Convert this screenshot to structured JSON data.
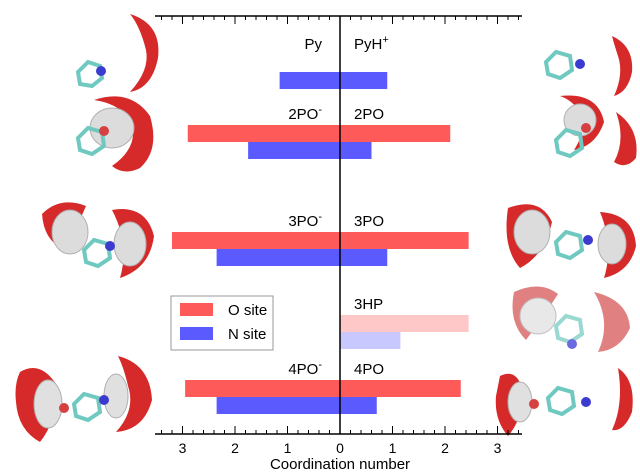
{
  "chart_data": {
    "type": "bar",
    "orientation": "diverging-horizontal",
    "xlabel": "Coordination number",
    "xlim": [
      -3.5,
      3.5
    ],
    "ticks": [
      {
        "value": -3,
        "label": "3"
      },
      {
        "value": -2,
        "label": "2"
      },
      {
        "value": -1,
        "label": "1"
      },
      {
        "value": 0,
        "label": "0"
      },
      {
        "value": 1,
        "label": "1"
      },
      {
        "value": 2,
        "label": "2"
      },
      {
        "value": 3,
        "label": "3"
      }
    ],
    "legend": {
      "position": "lower-left",
      "entries": [
        {
          "label": "O site",
          "color": "#ff5a5a"
        },
        {
          "label": "N site",
          "color": "#5a5aff"
        }
      ]
    },
    "colors": {
      "O": "#ff5a5a",
      "N": "#5a5aff",
      "O_faded": "#ffc8c8",
      "N_faded": "#c8c8ff"
    },
    "groups": [
      {
        "left_label": "Py",
        "left_sup": "",
        "right_label": "PyH",
        "right_sup": "+",
        "left": {
          "O": null,
          "N": 1.15
        },
        "right": {
          "O": null,
          "N": 0.9
        },
        "faded": false
      },
      {
        "left_label": "2PO",
        "left_sup": "-",
        "right_label": "2PO",
        "right_sup": "",
        "left": {
          "O": 2.9,
          "N": 1.75
        },
        "right": {
          "O": 2.1,
          "N": 0.6
        },
        "faded": false
      },
      {
        "left_label": "3PO",
        "left_sup": "-",
        "right_label": "3PO",
        "right_sup": "",
        "left": {
          "O": 3.2,
          "N": 2.35
        },
        "right": {
          "O": 2.45,
          "N": 0.9
        },
        "faded": false
      },
      {
        "left_label": "",
        "left_sup": "",
        "right_label": "3HP",
        "right_sup": "",
        "left": {
          "O": null,
          "N": null
        },
        "right": {
          "O": 2.45,
          "N": 1.15
        },
        "faded": true
      },
      {
        "left_label": "4PO",
        "left_sup": "-",
        "right_label": "4PO",
        "right_sup": "",
        "left": {
          "O": 2.95,
          "N": 2.35
        },
        "right": {
          "O": 2.3,
          "N": 0.7
        },
        "faded": false
      }
    ]
  }
}
